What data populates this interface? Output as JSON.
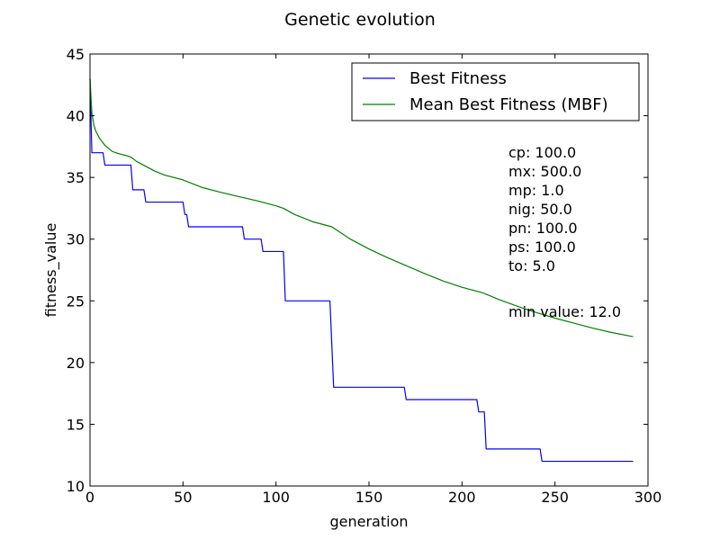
{
  "chart_data": {
    "type": "line",
    "title": "Genetic evolution",
    "xlabel": "generation",
    "ylabel": "fitness_value",
    "xlim": [
      0,
      300
    ],
    "ylim": [
      10,
      45
    ],
    "xticks": [
      0,
      50,
      100,
      150,
      200,
      250,
      300
    ],
    "yticks": [
      10,
      15,
      20,
      25,
      30,
      35,
      40,
      45
    ],
    "grid": false,
    "legend_position": "top-right",
    "series": [
      {
        "name": "Best Fitness",
        "color": "#0000ff",
        "step": true,
        "x": [
          0,
          1,
          7,
          8,
          22,
          23,
          29,
          30,
          50,
          51,
          52,
          53,
          82,
          83,
          92,
          93,
          104,
          105,
          129,
          131,
          169,
          170,
          208,
          209,
          212,
          213,
          242,
          243,
          292
        ],
        "y": [
          43,
          37,
          37,
          36,
          36,
          34,
          34,
          33,
          33,
          32,
          32,
          31,
          31,
          30,
          30,
          29,
          29,
          25,
          25,
          18,
          18,
          17,
          17,
          16,
          16,
          13,
          13,
          12,
          12
        ]
      },
      {
        "name": "Mean Best Fitness (MBF)",
        "color": "#008000",
        "step": false,
        "x": [
          0,
          1,
          2,
          3,
          5,
          8,
          12,
          16,
          20,
          22,
          25,
          30,
          35,
          40,
          50,
          60,
          70,
          80,
          90,
          100,
          104,
          110,
          120,
          130,
          140,
          150,
          160,
          170,
          180,
          190,
          200,
          210,
          212,
          220,
          230,
          240,
          250,
          260,
          270,
          280,
          292
        ],
        "y": [
          43,
          40.2,
          39.3,
          38.8,
          38.2,
          37.6,
          37.1,
          36.9,
          36.75,
          36.65,
          36.3,
          35.9,
          35.5,
          35.2,
          34.8,
          34.2,
          33.8,
          33.45,
          33.1,
          32.7,
          32.5,
          32.0,
          31.4,
          31.0,
          30.0,
          29.2,
          28.5,
          27.85,
          27.2,
          26.6,
          26.1,
          25.7,
          25.6,
          25.1,
          24.55,
          24.05,
          23.6,
          23.2,
          22.8,
          22.45,
          22.1
        ]
      }
    ],
    "annotations": [
      "cp: 100.0",
      "mx: 500.0",
      "mp: 1.0",
      "nig: 50.0",
      "pn: 100.0",
      "ps: 100.0",
      "to: 5.0",
      "min value: 12.0"
    ]
  }
}
